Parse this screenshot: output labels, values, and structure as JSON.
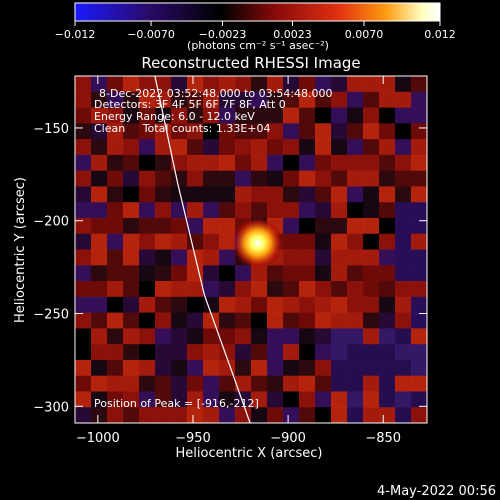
{
  "chart_data": {
    "type": "heatmap",
    "title": "Reconstructed RHESSI Image",
    "xlabel": "Heliocentric X (arcsec)",
    "ylabel": "Heliocentric Y (arcsec)",
    "xlim": [
      -1012,
      -827
    ],
    "ylim": [
      -309,
      -122
    ],
    "x_ticks": [
      -1000,
      -950,
      -900,
      -850
    ],
    "y_ticks": [
      -150,
      -200,
      -250,
      -300
    ],
    "x_tick_labels": [
      "−1000",
      "−950",
      "−900",
      "−850"
    ],
    "y_tick_labels": [
      "−150",
      "−200",
      "−250",
      "−300"
    ],
    "colorbar": {
      "range": [
        -0.012,
        0.012
      ],
      "ticks": [
        -0.012,
        -0.007,
        -0.0023,
        0.0023,
        0.007,
        0.012
      ],
      "tick_labels": [
        "−0.012",
        "−0.0070",
        "−0.0023",
        "0.0023",
        "0.0070",
        "0.012"
      ],
      "unit_label": "(photons cm⁻² s⁻¹ asec⁻²)",
      "colors": [
        "#1a1aff",
        "#2a0a6a",
        "#000000",
        "#8a0a0a",
        "#e03010",
        "#ff9a10",
        "#ffffc0",
        "#ffffff"
      ]
    },
    "annotations": [
      "8-Dec-2022 03:52:48.000 to 03:54:48.000",
      "Detectors: 3F 4F 5F 6F 7F 8F, Att 0",
      "Energy Range: 6.0 - 12.0 keV",
      "Clean     Total counts: 1.33E+04"
    ],
    "peak_label": "Position of Peak = [-916,-212]",
    "peak": {
      "x": -916,
      "y": -212,
      "value": 0.012
    },
    "limb_line": [
      [
        -970,
        -122
      ],
      [
        -958,
        -180
      ],
      [
        -944,
        -240
      ],
      [
        -930,
        -280
      ],
      [
        -920,
        -309
      ]
    ],
    "footer_date": "4-May-2022 00:56"
  }
}
